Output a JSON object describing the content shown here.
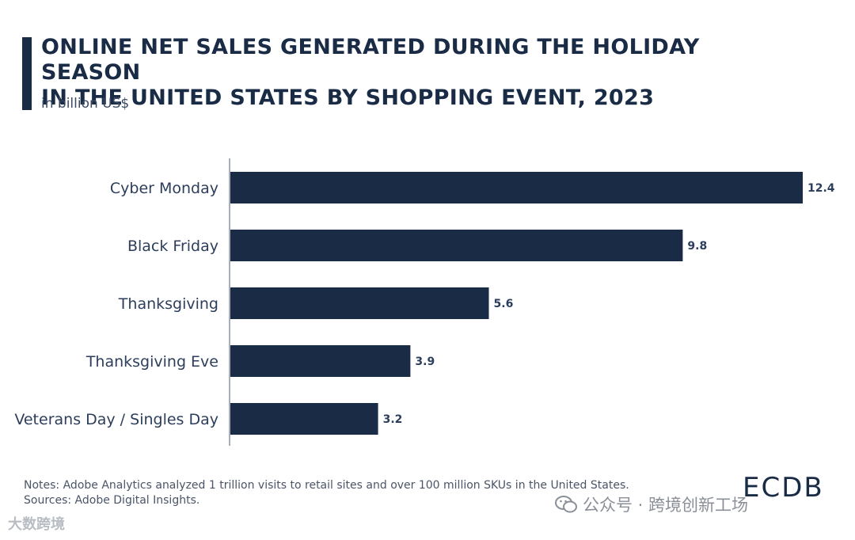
{
  "header": {
    "title_line1": "ONLINE NET SALES GENERATED DURING THE HOLIDAY SEASON",
    "title_line2": "IN THE UNITED STATES BY SHOPPING EVENT, 2023",
    "subtitle": "in billion US$"
  },
  "chart_data": {
    "type": "bar",
    "orientation": "horizontal",
    "title": "ONLINE NET SALES GENERATED DURING THE HOLIDAY SEASON IN THE UNITED STATES BY SHOPPING EVENT, 2023",
    "subtitle": "in billion US$",
    "categories": [
      "Cyber Monday",
      "Black Friday",
      "Thanksgiving",
      "Thanksgiving Eve",
      "Veterans Day / Singles Day"
    ],
    "values": [
      12.4,
      9.8,
      5.6,
      3.9,
      3.2
    ],
    "value_labels": [
      "12.4",
      "9.8",
      "5.6",
      "3.9",
      "3.2"
    ],
    "xlim": [
      0,
      12.4
    ],
    "bar_color": "#1a2b46",
    "grid": false
  },
  "footer": {
    "notes": "Notes: Adobe Analytics analyzed 1 trillion visits to retail sites and over 100 million SKUs in the United States.",
    "sources": "Sources: Adobe Digital Insights.",
    "logo": "ECDB"
  },
  "watermarks": {
    "right": "公众号 · 跨境创新工场",
    "left": "大数跨境"
  }
}
